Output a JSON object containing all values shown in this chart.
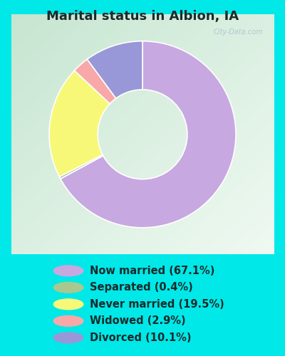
{
  "title": "Marital status in Albion, IA",
  "categories": [
    "Now married",
    "Separated",
    "Never married",
    "Widowed",
    "Divorced"
  ],
  "values": [
    67.1,
    0.4,
    19.5,
    2.9,
    10.1
  ],
  "colors": [
    "#c8a8e0",
    "#a8c890",
    "#f8f878",
    "#f8a8a8",
    "#9898d8"
  ],
  "bg_cyan": "#00e8e8",
  "bg_chart_tl": "#c8e8d0",
  "bg_chart_br": "#e8f4e8",
  "legend_labels": [
    "Now married (67.1%)",
    "Separated (0.4%)",
    "Never married (19.5%)",
    "Widowed (2.9%)",
    "Divorced (10.1%)"
  ],
  "legend_colors": [
    "#c8a8e0",
    "#a8c890",
    "#f8f878",
    "#f8a8a8",
    "#9898d8"
  ],
  "watermark": "City-Data.com",
  "title_fontsize": 13,
  "legend_fontsize": 10.5,
  "donut_width": 0.52
}
